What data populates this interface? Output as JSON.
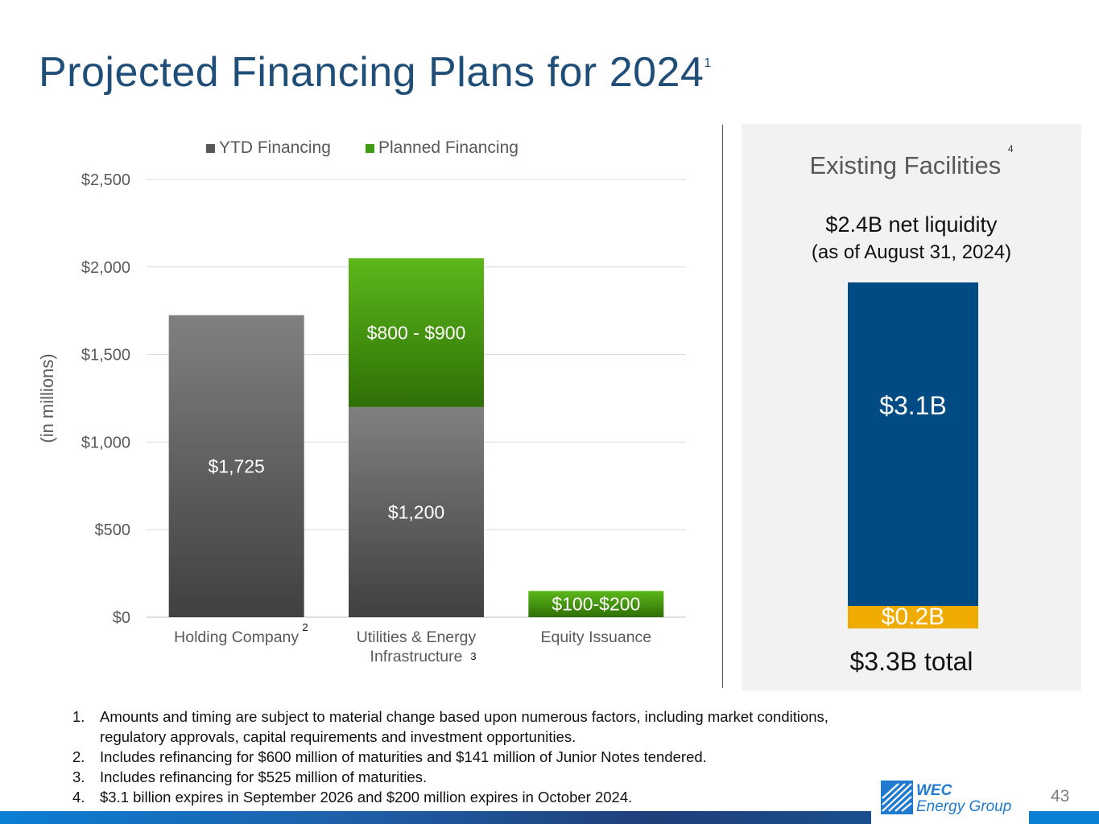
{
  "title": {
    "text": "Projected Financing Plans for 2024",
    "footnote": "1"
  },
  "chart_data": {
    "type": "bar",
    "stacked": true,
    "categories": [
      "Holding Company",
      "Utilities & Energy Infrastructure",
      "Equity Issuance"
    ],
    "category_footnotes": [
      "2",
      "3",
      ""
    ],
    "series": [
      {
        "name": "YTD Financing",
        "color": "#595959",
        "values": [
          1725,
          1200,
          0
        ],
        "labels": [
          "$1,725",
          "$1,200",
          ""
        ]
      },
      {
        "name": "Planned Financing",
        "color": "#3f9a14",
        "values": [
          0,
          850,
          150
        ],
        "labels": [
          "",
          "$800 - $900",
          "$100-$200"
        ]
      }
    ],
    "ylabel": "(in millions)",
    "ylim": [
      0,
      2500
    ],
    "yticks": [
      0,
      500,
      1000,
      1500,
      2000,
      2500
    ],
    "ytick_labels": [
      "$0",
      "$500",
      "$1,000",
      "$1,500",
      "$2,000",
      "$2,500"
    ],
    "grid": true,
    "legend_position": "top"
  },
  "facilities": {
    "title": "Existing Facilities",
    "footnote": "4",
    "liquidity": "$2.4B net liquidity",
    "as_of": "(as of August 31, 2024)",
    "segments": [
      {
        "label": "$3.1B",
        "value": 3.1,
        "color": "#004b84"
      },
      {
        "label": "$0.2B",
        "value": 0.2,
        "color": "#f0ab00"
      }
    ],
    "total": "$3.3B total"
  },
  "footnotes": [
    {
      "num": "1.",
      "text": "Amounts and timing are subject to material change based upon numerous factors, including market conditions, regulatory approvals, capital requirements and investment opportunities."
    },
    {
      "num": "2.",
      "text": "Includes refinancing for $600 million of maturities and $141 million of Junior Notes tendered."
    },
    {
      "num": "3.",
      "text": "Includes refinancing for $525 million of maturities."
    },
    {
      "num": "4.",
      "text": "$3.1 billion expires in September 2026 and $200 million expires in October 2024."
    }
  ],
  "logo": {
    "line1": "WEC",
    "line2": "Energy Group"
  },
  "page_number": "43"
}
